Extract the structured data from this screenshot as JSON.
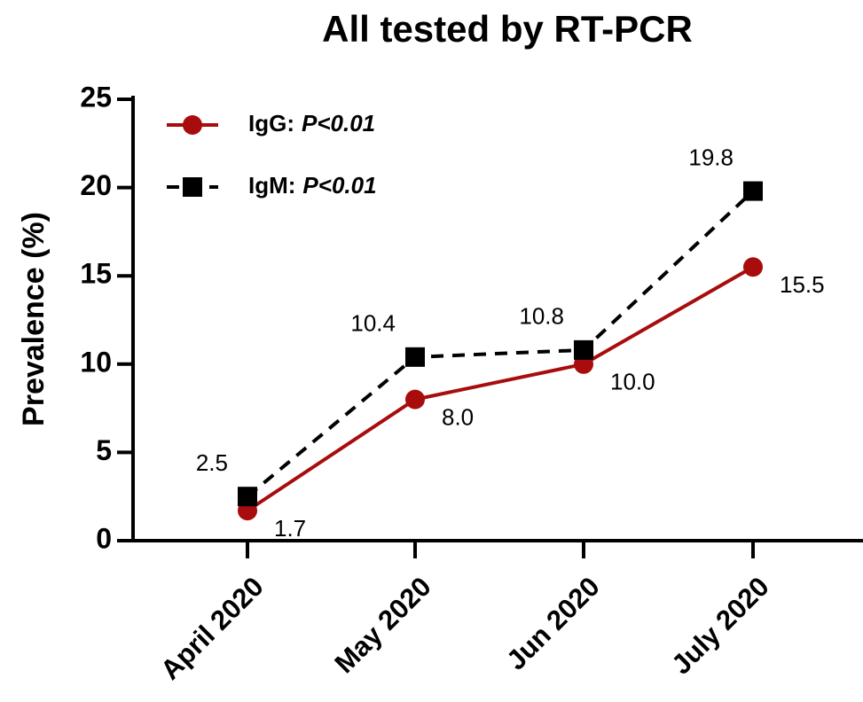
{
  "chart_data": {
    "type": "line",
    "title": "All tested by RT-PCR",
    "y_label": "Prevalence (%)",
    "categories": [
      "April 2020",
      "May 2020",
      "Jun 2020",
      "July 2020"
    ],
    "series": [
      {
        "name": "IgG:",
        "p_value": "P<0.01",
        "color": "#a80c0c",
        "marker": "circle",
        "dash": false,
        "values": [
          1.7,
          8.0,
          10.0,
          15.5
        ],
        "value_labels": [
          "1.7",
          "8.0",
          "10.0",
          "15.5"
        ]
      },
      {
        "name": "IgM:",
        "p_value": "P<0.01",
        "color": "#000000",
        "marker": "square",
        "dash": true,
        "values": [
          2.5,
          10.4,
          10.8,
          19.8
        ],
        "value_labels": [
          "2.5",
          "10.4",
          "10.8",
          "19.8"
        ]
      }
    ],
    "ylim": [
      0,
      25
    ],
    "yticks": [
      0,
      5,
      10,
      15,
      20,
      25
    ],
    "grid": false,
    "legend": "upper left"
  }
}
